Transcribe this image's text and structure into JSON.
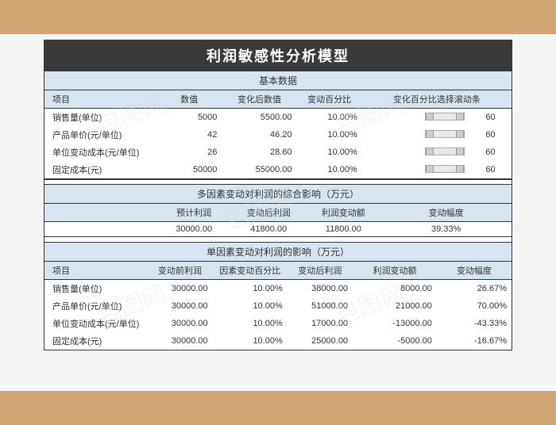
{
  "title": "利润敏感性分析模型",
  "section1": {
    "header": "基本数据",
    "cols": [
      "项目",
      "数值",
      "变化后数值",
      "变动百分比",
      "变化百分比选择滚动条"
    ],
    "rows": [
      {
        "label": "销售量(单位)",
        "val": "5000",
        "after": "5500.00",
        "pct": "10.00%",
        "scroll": "60"
      },
      {
        "label": "产品单价(元/单位)",
        "val": "42",
        "after": "46.20",
        "pct": "10.00%",
        "scroll": "60"
      },
      {
        "label": "单位变动成本(元/单位)",
        "val": "26",
        "after": "28.60",
        "pct": "10.00%",
        "scroll": "60"
      },
      {
        "label": "固定成本(元)",
        "val": "50000",
        "after": "55000.00",
        "pct": "10.00%",
        "scroll": "60"
      }
    ]
  },
  "section2": {
    "header": "多因素变动对利润的综合影响（万元）",
    "cols": [
      "预计利润",
      "变动后利润",
      "利润变动额",
      "变动幅度"
    ],
    "row": {
      "est": "30000.00",
      "after": "41800.00",
      "delta": "11800.00",
      "range": "39.33%"
    }
  },
  "section3": {
    "header": "单因素变动对利润的影响（万元）",
    "cols": [
      "项目",
      "变动前利润",
      "因素变动百分比",
      "变动后利润",
      "利润变动额",
      "变动幅度"
    ],
    "rows": [
      {
        "label": "销售量(单位)",
        "before": "30000.00",
        "pct": "10.00%",
        "after": "38000.00",
        "delta": "8000.00",
        "range": "26.67%"
      },
      {
        "label": "产品单价(元/单位)",
        "before": "30000.00",
        "pct": "10.00%",
        "after": "51000.00",
        "delta": "21000.00",
        "range": "70.00%"
      },
      {
        "label": "单位变动成本(元/单位)",
        "before": "30000.00",
        "pct": "10.00%",
        "after": "17000.00",
        "delta": "-13000.00",
        "range": "-43.33%"
      },
      {
        "label": "固定成本(元)",
        "before": "30000.00",
        "pct": "10.00%",
        "after": "25000.00",
        "delta": "-5000.00",
        "range": "-16.67%"
      }
    ]
  },
  "watermark": "包图网"
}
